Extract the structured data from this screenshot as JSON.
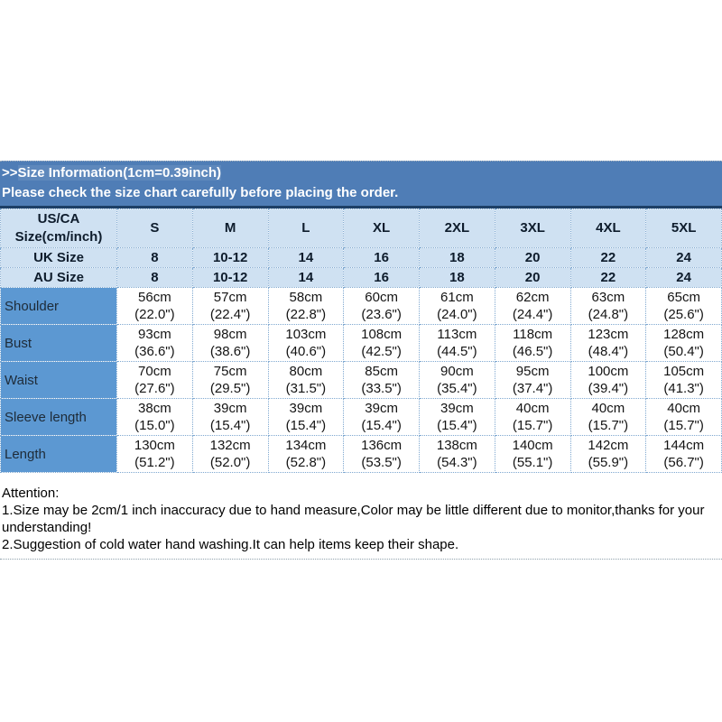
{
  "band": {
    "title_prefix": ">>",
    "title_main": "Size Information(1cm=0.39inch)",
    "subtitle": "Please check the size chart carefully before placing the order."
  },
  "table": {
    "corner": {
      "line1": "US/CA",
      "line2": "Size(cm/inch)"
    },
    "size_headers": [
      "S",
      "M",
      "L",
      "XL",
      "2XL",
      "3XL",
      "4XL",
      "5XL"
    ],
    "uk": {
      "label": "UK Size",
      "values": [
        "8",
        "10-12",
        "14",
        "16",
        "18",
        "20",
        "22",
        "24"
      ]
    },
    "au": {
      "label": "AU Size",
      "values": [
        "8",
        "10-12",
        "14",
        "16",
        "18",
        "20",
        "22",
        "24"
      ]
    },
    "rows": [
      {
        "label": "Shoulder",
        "cells": [
          {
            "cm": "56cm",
            "in": "(22.0\")"
          },
          {
            "cm": "57cm",
            "in": "(22.4\")"
          },
          {
            "cm": "58cm",
            "in": "(22.8\")"
          },
          {
            "cm": "60cm",
            "in": "(23.6\")"
          },
          {
            "cm": "61cm",
            "in": "(24.0\")"
          },
          {
            "cm": "62cm",
            "in": "(24.4\")"
          },
          {
            "cm": "63cm",
            "in": "(24.8\")"
          },
          {
            "cm": "65cm",
            "in": "(25.6\")"
          }
        ]
      },
      {
        "label": "Bust",
        "cells": [
          {
            "cm": "93cm",
            "in": "(36.6\")"
          },
          {
            "cm": "98cm",
            "in": "(38.6\")"
          },
          {
            "cm": "103cm",
            "in": "(40.6\")"
          },
          {
            "cm": "108cm",
            "in": "(42.5\")"
          },
          {
            "cm": "113cm",
            "in": "(44.5\")"
          },
          {
            "cm": "118cm",
            "in": "(46.5\")"
          },
          {
            "cm": "123cm",
            "in": "(48.4\")"
          },
          {
            "cm": "128cm",
            "in": "(50.4\")"
          }
        ]
      },
      {
        "label": "Waist",
        "cells": [
          {
            "cm": "70cm",
            "in": "(27.6\")"
          },
          {
            "cm": "75cm",
            "in": "(29.5\")"
          },
          {
            "cm": "80cm",
            "in": "(31.5\")"
          },
          {
            "cm": "85cm",
            "in": "(33.5\")"
          },
          {
            "cm": "90cm",
            "in": "(35.4\")"
          },
          {
            "cm": "95cm",
            "in": "(37.4\")"
          },
          {
            "cm": "100cm",
            "in": "(39.4\")"
          },
          {
            "cm": "105cm",
            "in": "(41.3\")"
          }
        ]
      },
      {
        "label": "Sleeve length",
        "cells": [
          {
            "cm": "38cm",
            "in": "(15.0\")"
          },
          {
            "cm": "39cm",
            "in": "(15.4\")"
          },
          {
            "cm": "39cm",
            "in": "(15.4\")"
          },
          {
            "cm": "39cm",
            "in": "(15.4\")"
          },
          {
            "cm": "39cm",
            "in": "(15.4\")"
          },
          {
            "cm": "40cm",
            "in": "(15.7\")"
          },
          {
            "cm": "40cm",
            "in": "(15.7\")"
          },
          {
            "cm": "40cm",
            "in": "(15.7\")"
          }
        ]
      },
      {
        "label": "Length",
        "cells": [
          {
            "cm": "130cm",
            "in": "(51.2\")"
          },
          {
            "cm": "132cm",
            "in": "(52.0\")"
          },
          {
            "cm": "134cm",
            "in": "(52.8\")"
          },
          {
            "cm": "136cm",
            "in": "(53.5\")"
          },
          {
            "cm": "138cm",
            "in": "(54.3\")"
          },
          {
            "cm": "140cm",
            "in": "(55.1\")"
          },
          {
            "cm": "142cm",
            "in": "(55.9\")"
          },
          {
            "cm": "144cm",
            "in": "(56.7\")"
          }
        ]
      }
    ]
  },
  "attention": {
    "title": "Attention:",
    "line1": "1.Size may be 2cm/1 inch inaccuracy due to hand measure,Color may be little different due to monitor,thanks for your understanding!",
    "line2": "2.Suggestion of cold water hand washing.It can help items keep their shape."
  },
  "colors": {
    "banner_background": "#4f7db6",
    "banner_text": "#ffffff",
    "header_row_background": "#cfe1f2",
    "label_column_background": "#5c98d2",
    "table_dotted_border": "#7fa8d0",
    "banner_bottom_line": "#1d3f66"
  }
}
